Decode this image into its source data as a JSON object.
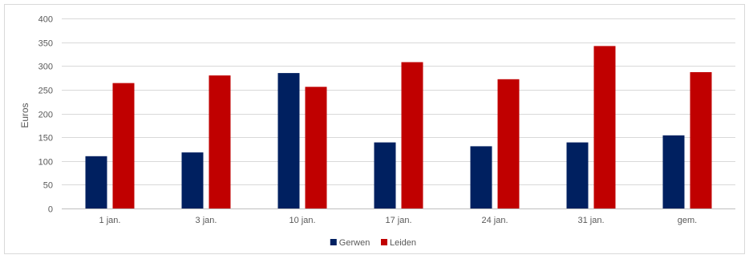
{
  "chart_data": {
    "type": "bar",
    "title": "",
    "xlabel": "",
    "ylabel": "Euros",
    "ylim": [
      0,
      400
    ],
    "yticks": [
      0,
      50,
      100,
      150,
      200,
      250,
      300,
      350,
      400
    ],
    "grid": true,
    "legend_position": "bottom",
    "categories": [
      "1 jan.",
      "3 jan.",
      "10 jan.",
      "17 jan.",
      "24 jan.",
      "31 jan.",
      "gem."
    ],
    "series": [
      {
        "name": "Gerwen",
        "color": "#002060",
        "values": [
          110,
          118,
          285,
          139,
          131,
          139,
          154
        ]
      },
      {
        "name": "Leiden",
        "color": "#C00000",
        "values": [
          264,
          280,
          256,
          308,
          272,
          342,
          287
        ]
      }
    ]
  }
}
